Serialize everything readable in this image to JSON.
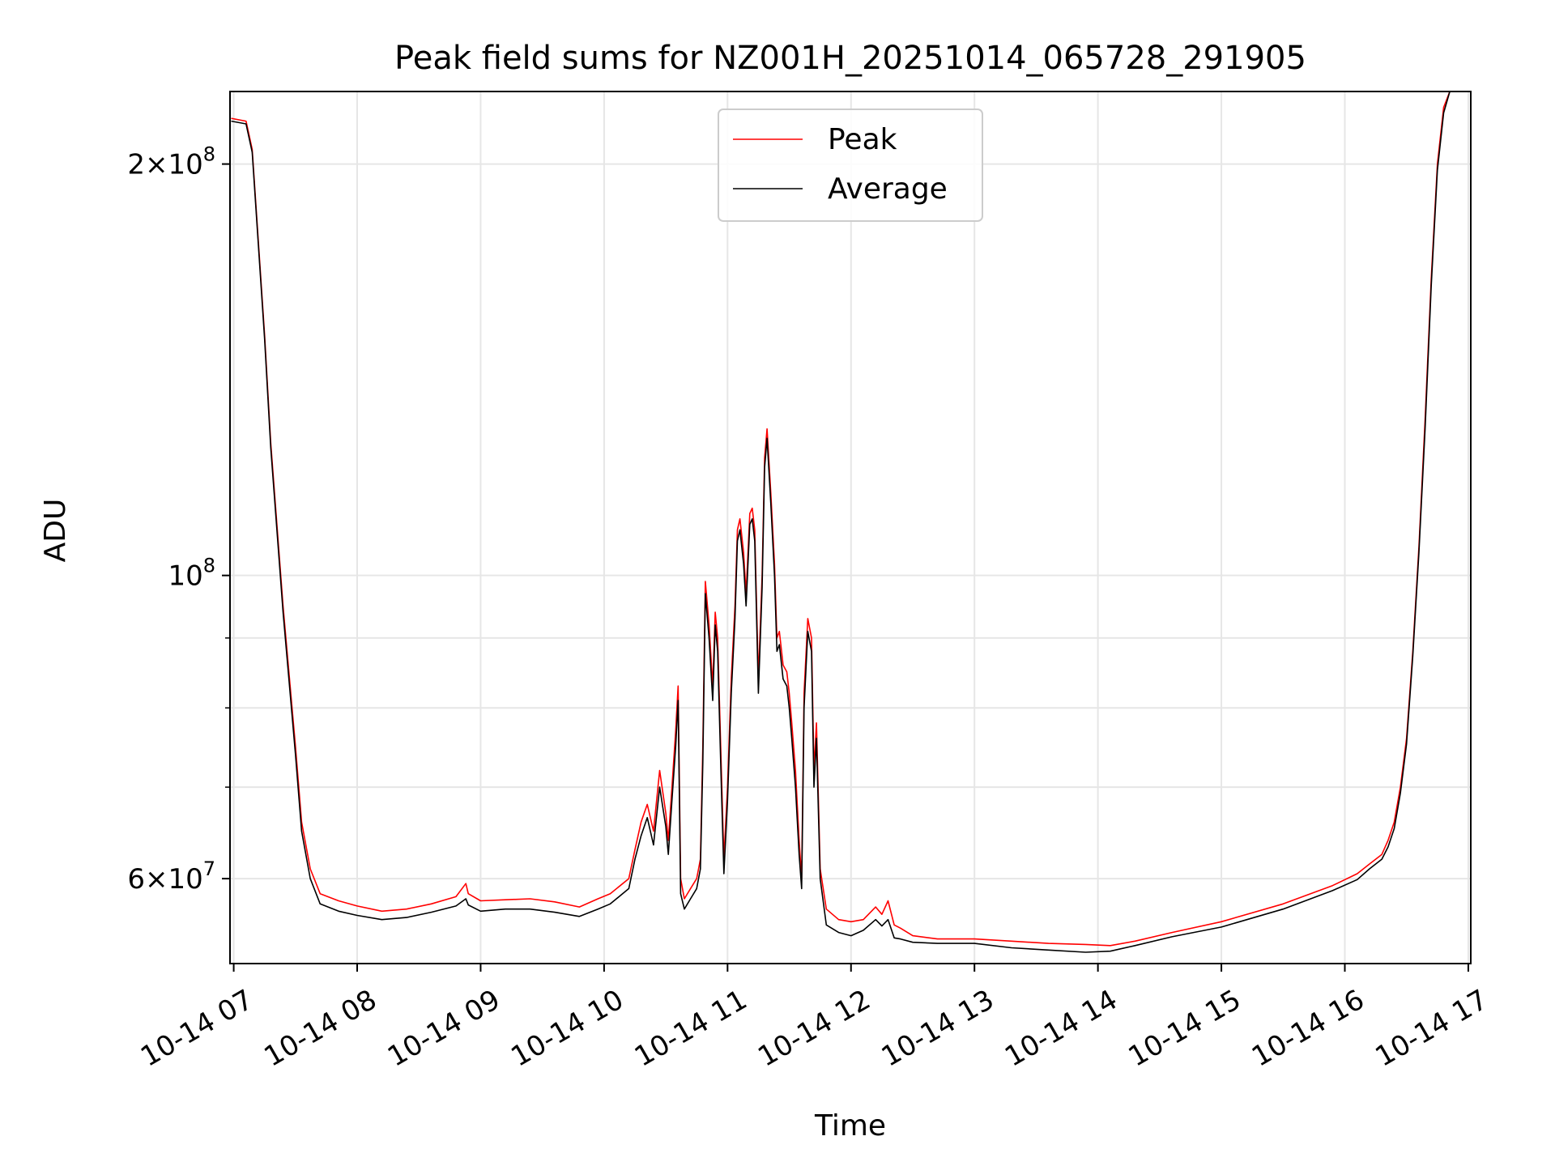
{
  "chart_data": {
    "type": "line",
    "title": "Peak field sums for NZ001H_20251014_065728_291905",
    "xlabel": "Time",
    "ylabel": "ADU",
    "xlim": [
      6.97,
      17.02
    ],
    "ylim": [
      52000000,
      226000000
    ],
    "yscale": "log",
    "grid": true,
    "legend_position": "top-center",
    "x_ticks": [
      {
        "value": 7,
        "label": "10-14 07"
      },
      {
        "value": 8,
        "label": "10-14 08"
      },
      {
        "value": 9,
        "label": "10-14 09"
      },
      {
        "value": 10,
        "label": "10-14 10"
      },
      {
        "value": 11,
        "label": "10-14 11"
      },
      {
        "value": 12,
        "label": "10-14 12"
      },
      {
        "value": 13,
        "label": "10-14 13"
      },
      {
        "value": 14,
        "label": "10-14 14"
      },
      {
        "value": 15,
        "label": "10-14 15"
      },
      {
        "value": 16,
        "label": "10-14 16"
      },
      {
        "value": 17,
        "label": "10-14 17"
      }
    ],
    "y_major_ticks": [
      {
        "value": 60000000,
        "base": "6",
        "exp": "7"
      },
      {
        "value": 100000000,
        "base": "",
        "exp": "8"
      },
      {
        "value": 200000000,
        "base": "2",
        "exp": "8"
      }
    ],
    "y_minor_ticks": [
      70000000,
      80000000,
      90000000,
      300000000
    ],
    "series": [
      {
        "name": "Peak",
        "color": "#ff0000",
        "x": [
          6.98,
          7.1,
          7.15,
          7.25,
          7.3,
          7.4,
          7.5,
          7.55,
          7.62,
          7.7,
          7.85,
          8.0,
          8.2,
          8.4,
          8.6,
          8.8,
          8.88,
          8.9,
          9.0,
          9.2,
          9.4,
          9.6,
          9.8,
          9.95,
          10.05,
          10.2,
          10.25,
          10.3,
          10.35,
          10.4,
          10.45,
          10.5,
          10.52,
          10.55,
          10.58,
          10.6,
          10.62,
          10.65,
          10.7,
          10.75,
          10.78,
          10.8,
          10.82,
          10.85,
          10.88,
          10.9,
          10.92,
          10.95,
          10.97,
          11.0,
          11.03,
          11.06,
          11.08,
          11.1,
          11.13,
          11.15,
          11.18,
          11.2,
          11.22,
          11.25,
          11.28,
          11.3,
          11.32,
          11.35,
          11.38,
          11.4,
          11.42,
          11.45,
          11.48,
          11.5,
          11.52,
          11.55,
          11.58,
          11.6,
          11.62,
          11.65,
          11.68,
          11.7,
          11.72,
          11.75,
          11.8,
          11.9,
          12.0,
          12.1,
          12.2,
          12.25,
          12.3,
          12.35,
          12.4,
          12.5,
          12.7,
          13.0,
          13.3,
          13.6,
          13.9,
          14.1,
          14.3,
          14.6,
          15.0,
          15.5,
          15.9,
          16.1,
          16.2,
          16.3,
          16.35,
          16.4,
          16.45,
          16.5,
          16.55,
          16.6,
          16.65,
          16.7,
          16.75,
          16.8,
          16.85,
          16.9,
          16.95
        ],
        "values": [
          216000000,
          215000000,
          205000000,
          150000000,
          125000000,
          95000000,
          75000000,
          66000000,
          61000000,
          58500000,
          57800000,
          57300000,
          56800000,
          57000000,
          57500000,
          58200000,
          59500000,
          58500000,
          57800000,
          57900000,
          58000000,
          57700000,
          57200000,
          58000000,
          58500000,
          60000000,
          63000000,
          66000000,
          68000000,
          65000000,
          72000000,
          67000000,
          64000000,
          70000000,
          77000000,
          83000000,
          60000000,
          58000000,
          59000000,
          60000000,
          62000000,
          75000000,
          99000000,
          92000000,
          83000000,
          94000000,
          90000000,
          72000000,
          62000000,
          70000000,
          84000000,
          95000000,
          108000000,
          110000000,
          104000000,
          97000000,
          111000000,
          112000000,
          108000000,
          84000000,
          100000000,
          122000000,
          128000000,
          115000000,
          102000000,
          90000000,
          91000000,
          86000000,
          85000000,
          82000000,
          78000000,
          72000000,
          64000000,
          60000000,
          82000000,
          93000000,
          90000000,
          72000000,
          78000000,
          61000000,
          57000000,
          56000000,
          55800000,
          56000000,
          57200000,
          56500000,
          57800000,
          55500000,
          55200000,
          54500000,
          54200000,
          54200000,
          54000000,
          53800000,
          53700000,
          53600000,
          54000000,
          54800000,
          55800000,
          57500000,
          59300000,
          60500000,
          61500000,
          62500000,
          64000000,
          66000000,
          70000000,
          76000000,
          88000000,
          105000000,
          130000000,
          165000000,
          200000000,
          220000000,
          226000000,
          226000000,
          226000000
        ]
      },
      {
        "name": "Average",
        "color": "#000000",
        "x": [
          6.98,
          7.1,
          7.15,
          7.25,
          7.3,
          7.4,
          7.5,
          7.55,
          7.62,
          7.7,
          7.85,
          8.0,
          8.2,
          8.4,
          8.6,
          8.8,
          8.88,
          8.9,
          9.0,
          9.2,
          9.4,
          9.6,
          9.8,
          9.95,
          10.05,
          10.2,
          10.25,
          10.3,
          10.35,
          10.4,
          10.45,
          10.5,
          10.52,
          10.55,
          10.58,
          10.6,
          10.62,
          10.65,
          10.7,
          10.75,
          10.78,
          10.8,
          10.82,
          10.85,
          10.88,
          10.9,
          10.92,
          10.95,
          10.97,
          11.0,
          11.03,
          11.06,
          11.08,
          11.1,
          11.13,
          11.15,
          11.18,
          11.2,
          11.22,
          11.25,
          11.28,
          11.3,
          11.32,
          11.35,
          11.38,
          11.4,
          11.42,
          11.45,
          11.48,
          11.5,
          11.52,
          11.55,
          11.58,
          11.6,
          11.62,
          11.65,
          11.68,
          11.7,
          11.72,
          11.75,
          11.8,
          11.9,
          12.0,
          12.1,
          12.2,
          12.25,
          12.3,
          12.35,
          12.4,
          12.5,
          12.7,
          13.0,
          13.3,
          13.6,
          13.9,
          14.1,
          14.3,
          14.6,
          15.0,
          15.5,
          15.9,
          16.1,
          16.2,
          16.3,
          16.35,
          16.4,
          16.45,
          16.5,
          16.55,
          16.6,
          16.65,
          16.7,
          16.75,
          16.8,
          16.85,
          16.9,
          16.95
        ],
        "values": [
          215000000,
          214000000,
          204000000,
          149000000,
          124000000,
          94000000,
          74000000,
          65000000,
          60000000,
          57500000,
          56800000,
          56400000,
          56000000,
          56200000,
          56700000,
          57300000,
          58000000,
          57400000,
          56800000,
          57000000,
          57000000,
          56700000,
          56300000,
          57000000,
          57500000,
          59000000,
          62000000,
          64500000,
          66500000,
          63500000,
          70000000,
          65500000,
          62500000,
          68500000,
          75000000,
          81000000,
          58500000,
          57000000,
          58000000,
          59000000,
          61000000,
          73000000,
          97000000,
          90000000,
          81000000,
          92000000,
          88000000,
          70000000,
          60500000,
          68500000,
          82000000,
          93000000,
          106000000,
          108000000,
          102000000,
          95000000,
          109000000,
          110000000,
          106000000,
          82000000,
          98000000,
          120000000,
          126000000,
          113000000,
          100000000,
          88000000,
          89000000,
          84000000,
          83000000,
          80000000,
          76000000,
          70000000,
          62500000,
          59000000,
          80000000,
          91000000,
          88000000,
          70000000,
          76000000,
          60000000,
          55500000,
          54800000,
          54500000,
          55000000,
          56000000,
          55400000,
          56000000,
          54300000,
          54200000,
          53900000,
          53800000,
          53800000,
          53400000,
          53200000,
          53000000,
          53100000,
          53600000,
          54400000,
          55300000,
          57000000,
          58800000,
          59900000,
          61000000,
          62000000,
          63300000,
          65300000,
          69300000,
          75300000,
          87300000,
          104000000,
          128000000,
          163000000,
          198000000,
          218000000,
          226000000,
          226000000,
          226000000
        ]
      }
    ]
  }
}
